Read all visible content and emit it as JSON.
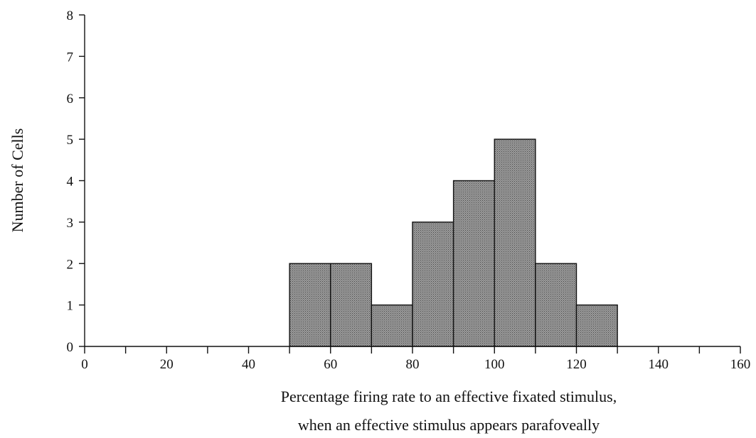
{
  "chart_data": {
    "type": "bar",
    "title": "",
    "xlabel": [
      "Percentage firing rate to an effective fixated stimulus,",
      "when an effective stimulus appears parafoveally"
    ],
    "ylabel": "Number of Cells",
    "xlim": [
      0,
      160
    ],
    "ylim": [
      0,
      8
    ],
    "x_tick_labels": [
      "0",
      "20",
      "40",
      "60",
      "80",
      "100",
      "120",
      "140",
      "160"
    ],
    "y_tick_labels": [
      "0",
      "1",
      "2",
      "3",
      "4",
      "5",
      "6",
      "7",
      "8"
    ],
    "bin_width": 10,
    "bins": [
      {
        "start": 50,
        "end": 60,
        "count": 2
      },
      {
        "start": 60,
        "end": 70,
        "count": 2
      },
      {
        "start": 70,
        "end": 80,
        "count": 1
      },
      {
        "start": 80,
        "end": 90,
        "count": 3
      },
      {
        "start": 90,
        "end": 100,
        "count": 4
      },
      {
        "start": 100,
        "end": 110,
        "count": 5
      },
      {
        "start": 110,
        "end": 120,
        "count": 2
      },
      {
        "start": 120,
        "end": 130,
        "count": 1
      }
    ],
    "grid": false,
    "legend": "none",
    "bar_color": "#8a8a8a",
    "axis_color": "#111111"
  }
}
